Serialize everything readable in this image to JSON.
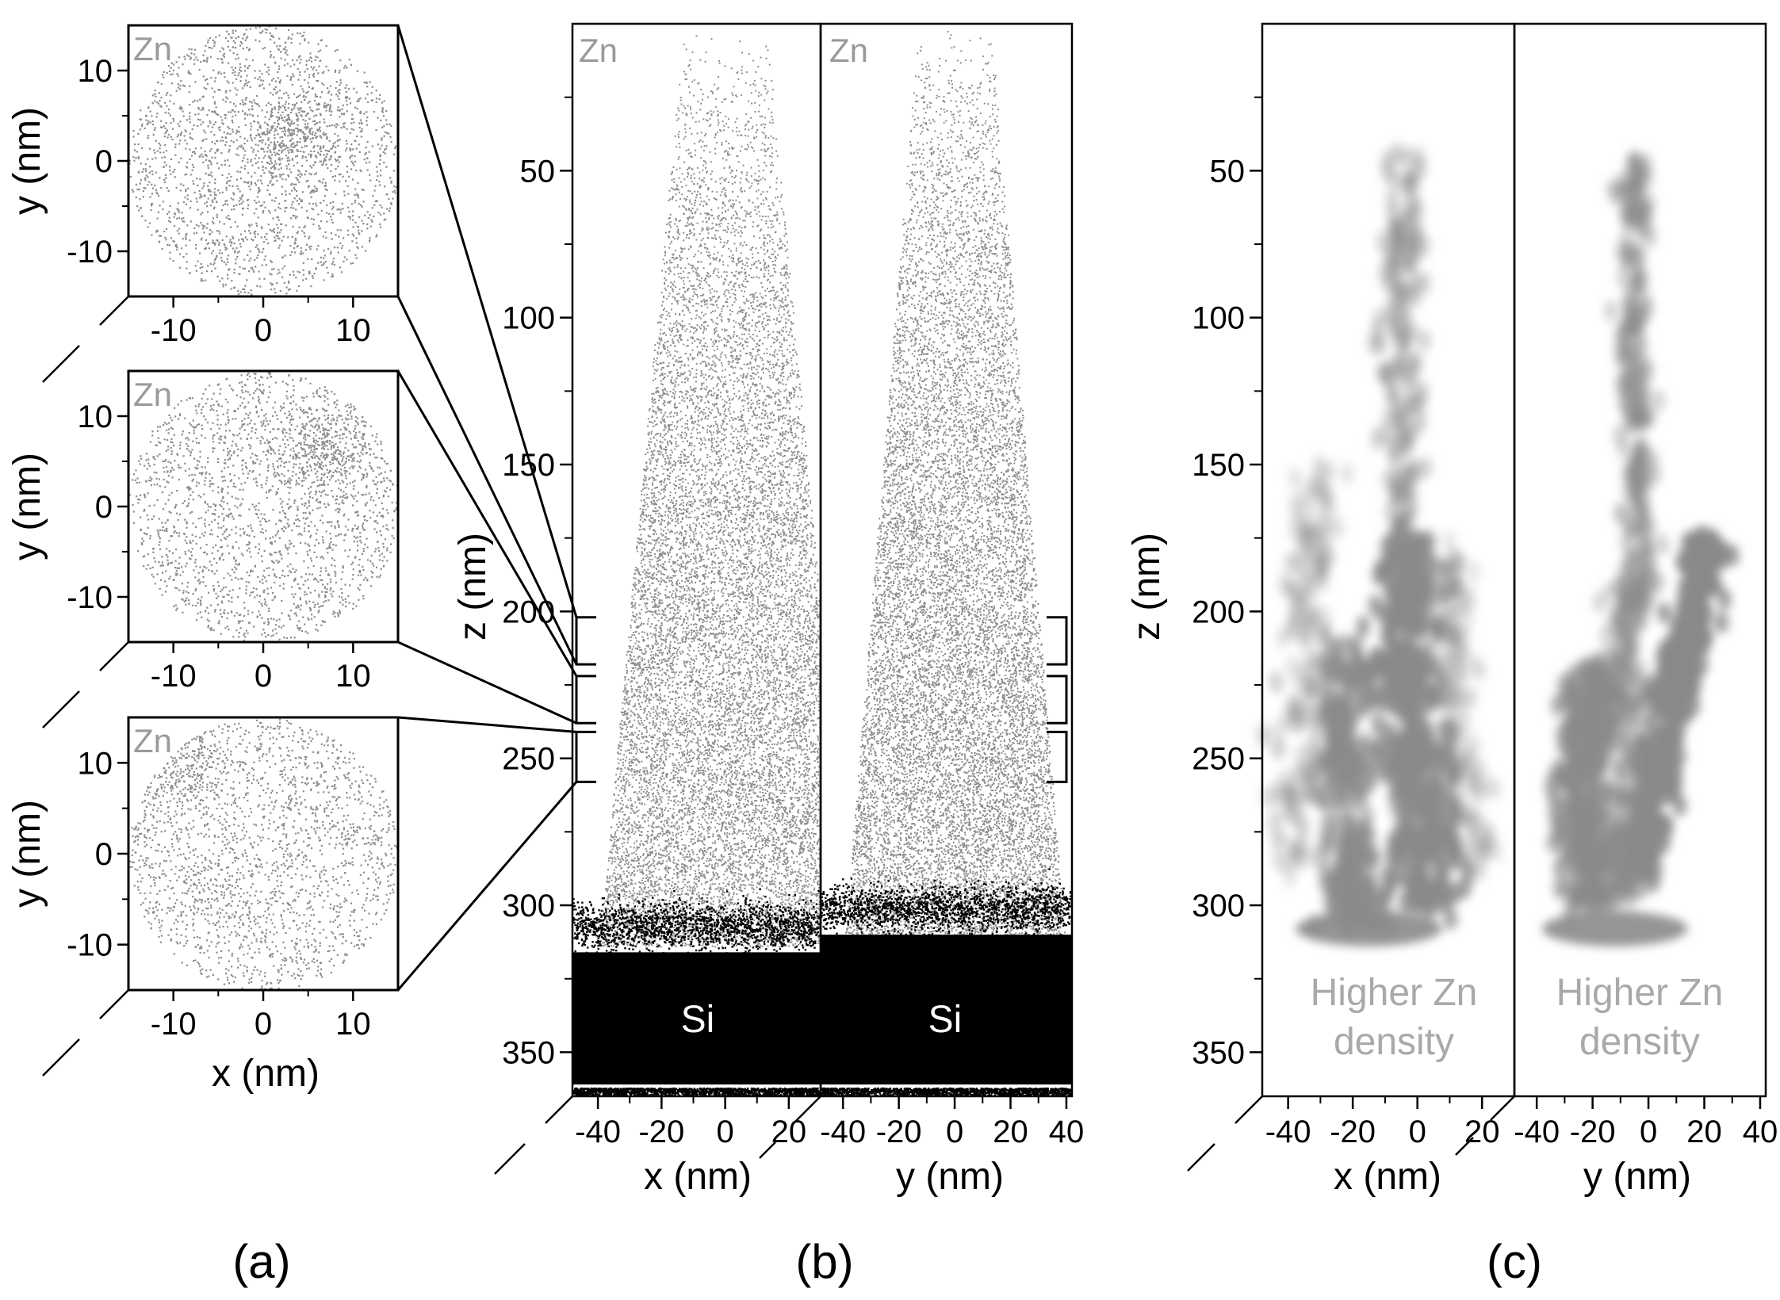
{
  "colors": {
    "zn_atoms": "#8c8c8c",
    "si_atoms": "#000000",
    "density": "#8a8a8a",
    "frame": "#000000",
    "label_grey": "#9a9a9a"
  },
  "panel_labels": [
    "(a)",
    "(b)",
    "(c)"
  ],
  "chart_data": [
    {
      "id": "a",
      "type": "scatter",
      "species": "Zn",
      "subplots": [
        {
          "species_label": "Zn",
          "ylabel": "y (nm)",
          "xlabel": "",
          "xlim": [
            -15,
            15
          ],
          "ylim": [
            -15,
            15
          ],
          "xticks": [
            -10,
            0,
            10
          ],
          "yticks": [
            -10,
            0,
            10
          ],
          "cluster": [
            3,
            3
          ]
        },
        {
          "species_label": "Zn",
          "ylabel": "y (nm)",
          "xlabel": "",
          "xlim": [
            -15,
            15
          ],
          "ylim": [
            -15,
            15
          ],
          "xticks": [
            -10,
            0,
            10
          ],
          "yticks": [
            -10,
            0,
            10
          ],
          "cluster": [
            6,
            6
          ]
        },
        {
          "species_label": "Zn",
          "ylabel": "y (nm)",
          "xlabel": "x (nm)",
          "xlim": [
            -15,
            15
          ],
          "ylim": [
            -15,
            15
          ],
          "xticks": [
            -10,
            0,
            10
          ],
          "yticks": [
            -10,
            0,
            10
          ],
          "cluster": [
            -11,
            10
          ]
        }
      ],
      "slice_ranges_z": [
        [
          202,
          218
        ],
        [
          222,
          238
        ],
        [
          241,
          258
        ]
      ]
    },
    {
      "id": "b",
      "type": "scatter",
      "ylabel": "z (nm)",
      "ylim": [
        0,
        365
      ],
      "yticks": [
        50,
        100,
        150,
        200,
        250,
        300,
        350
      ],
      "subplots": [
        {
          "species_label": "Zn",
          "xlabel": "x (nm)",
          "xlim": [
            -48,
            30
          ],
          "xticks": [
            -40,
            -20,
            0,
            20
          ]
        },
        {
          "species_label": "Zn",
          "xlabel": "y (nm)",
          "xlim": [
            -48,
            42
          ],
          "xticks": [
            -40,
            -20,
            0,
            20,
            40
          ]
        }
      ],
      "region_label": "Si",
      "si_interface_z": 310,
      "tip_top_halfwidth": 13,
      "tip_bottom_halfwidth": 44
    },
    {
      "id": "c",
      "type": "heatmap",
      "ylabel": "z (nm)",
      "ylim": [
        0,
        365
      ],
      "yticks": [
        50,
        100,
        150,
        200,
        250,
        300,
        350
      ],
      "subplots": [
        {
          "xlabel": "x (nm)",
          "xlim": [
            -48,
            30
          ],
          "xticks": [
            -40,
            -20,
            0,
            20
          ]
        },
        {
          "xlabel": "y (nm)",
          "xlim": [
            -48,
            42
          ],
          "xticks": [
            -40,
            -20,
            0,
            20,
            40
          ]
        }
      ],
      "annotation": [
        "Higher Zn",
        "density"
      ]
    }
  ]
}
